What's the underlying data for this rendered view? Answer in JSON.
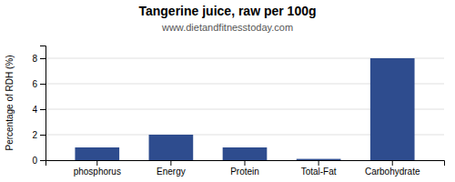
{
  "chart_data": {
    "type": "bar",
    "title": "Tangerine juice, raw per 100g",
    "subtitle": "www.dietandfitnesstoday.com",
    "categories": [
      "phosphorus",
      "Energy",
      "Protein",
      "Total-Fat",
      "Carbohydrate"
    ],
    "values": [
      1.0,
      2.0,
      1.0,
      0.1,
      8.0
    ],
    "color": "#2e4c8e",
    "ylabel": "Percentage of RDH (%)",
    "ylim": [
      0,
      9
    ],
    "yticks": [
      0,
      2,
      4,
      6,
      8
    ],
    "grid": true
  }
}
